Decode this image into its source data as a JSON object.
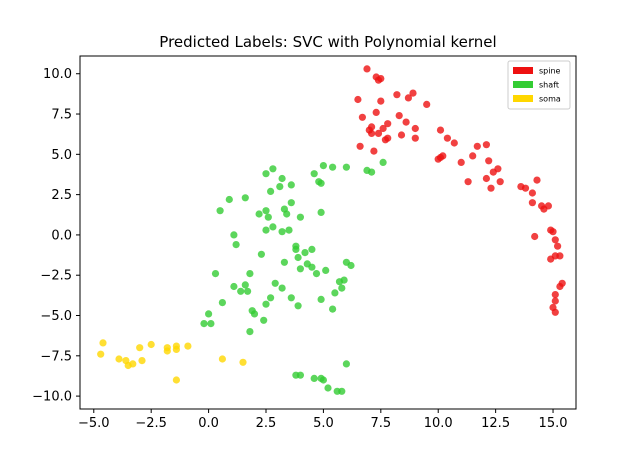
{
  "chart_data": {
    "type": "scatter",
    "title": "Predicted Labels: SVC with Polynomial kernel",
    "xlabel": "",
    "ylabel": "",
    "xlim": [
      -5.6,
      16.0
    ],
    "ylim": [
      -10.8,
      11.1
    ],
    "xticks": [
      -5.0,
      -2.5,
      0.0,
      2.5,
      5.0,
      7.5,
      10.0,
      12.5,
      15.0
    ],
    "xtick_labels": [
      "−5.0",
      "−2.5",
      "0.0",
      "2.5",
      "5.0",
      "7.5",
      "10.0",
      "12.5",
      "15.0"
    ],
    "yticks": [
      10.0,
      7.5,
      5.0,
      2.5,
      0.0,
      -2.5,
      -5.0,
      -7.5,
      -10.0
    ],
    "ytick_labels": [
      "10.0",
      "7.5",
      "5.0",
      "2.5",
      "0.0",
      "−2.5",
      "−5.0",
      "−7.5",
      "−10.0"
    ],
    "grid": false,
    "legend_position": "top-right",
    "series": [
      {
        "name": "spine",
        "color": "#ee1111",
        "points": [
          [
            6.9,
            10.3
          ],
          [
            7.3,
            9.8
          ],
          [
            7.4,
            9.6
          ],
          [
            7.5,
            9.7
          ],
          [
            6.5,
            8.4
          ],
          [
            7.5,
            8.3
          ],
          [
            8.2,
            8.7
          ],
          [
            8.7,
            8.5
          ],
          [
            8.9,
            8.8
          ],
          [
            9.5,
            8.1
          ],
          [
            6.7,
            7.3
          ],
          [
            7.3,
            7.6
          ],
          [
            8.3,
            7.4
          ],
          [
            7.0,
            6.5
          ],
          [
            7.1,
            6.7
          ],
          [
            7.6,
            6.6
          ],
          [
            7.8,
            6.9
          ],
          [
            8.6,
            7.0
          ],
          [
            7.1,
            6.3
          ],
          [
            7.4,
            6.3
          ],
          [
            8.4,
            6.2
          ],
          [
            9.0,
            6.6
          ],
          [
            9.0,
            6.0
          ],
          [
            7.7,
            5.9
          ],
          [
            7.8,
            6.0
          ],
          [
            6.6,
            5.5
          ],
          [
            7.2,
            5.2
          ],
          [
            10.1,
            6.5
          ],
          [
            10.4,
            6.0
          ],
          [
            10.7,
            5.7
          ],
          [
            11.7,
            5.5
          ],
          [
            12.1,
            5.6
          ],
          [
            10.1,
            4.8
          ],
          [
            10.2,
            4.9
          ],
          [
            10.0,
            4.7
          ],
          [
            11.0,
            4.5
          ],
          [
            11.5,
            4.9
          ],
          [
            12.2,
            4.6
          ],
          [
            12.4,
            3.9
          ],
          [
            12.6,
            4.1
          ],
          [
            11.3,
            3.3
          ],
          [
            12.1,
            3.5
          ],
          [
            12.7,
            3.3
          ],
          [
            12.3,
            2.9
          ],
          [
            13.6,
            3.0
          ],
          [
            13.8,
            2.9
          ],
          [
            14.1,
            2.6
          ],
          [
            14.3,
            3.4
          ],
          [
            14.1,
            2.0
          ],
          [
            14.5,
            1.8
          ],
          [
            14.6,
            1.6
          ],
          [
            14.8,
            1.8
          ],
          [
            14.9,
            0.3
          ],
          [
            15.0,
            0.2
          ],
          [
            14.2,
            -0.1
          ],
          [
            15.1,
            -0.3
          ],
          [
            15.2,
            -0.7
          ],
          [
            15.1,
            -1.3
          ],
          [
            15.3,
            -1.3
          ],
          [
            14.9,
            -1.5
          ],
          [
            15.4,
            -3.0
          ],
          [
            15.3,
            -3.2
          ],
          [
            15.1,
            -3.7
          ],
          [
            15.1,
            -4.1
          ],
          [
            15.0,
            -4.5
          ],
          [
            15.1,
            -4.8
          ]
        ]
      },
      {
        "name": "shaft",
        "color": "#33cc33",
        "points": [
          [
            2.8,
            4.1
          ],
          [
            2.5,
            3.8
          ],
          [
            3.2,
            3.5
          ],
          [
            4.6,
            3.8
          ],
          [
            5.0,
            4.3
          ],
          [
            5.4,
            4.2
          ],
          [
            6.0,
            4.2
          ],
          [
            7.6,
            4.5
          ],
          [
            6.9,
            4.0
          ],
          [
            7.1,
            3.9
          ],
          [
            4.8,
            3.3
          ],
          [
            4.9,
            3.2
          ],
          [
            3.1,
            3.0
          ],
          [
            3.6,
            3.1
          ],
          [
            0.9,
            2.2
          ],
          [
            1.6,
            2.3
          ],
          [
            2.7,
            2.7
          ],
          [
            3.6,
            2.0
          ],
          [
            0.5,
            1.5
          ],
          [
            2.2,
            1.3
          ],
          [
            2.5,
            1.5
          ],
          [
            2.6,
            1.1
          ],
          [
            3.3,
            1.6
          ],
          [
            3.4,
            1.3
          ],
          [
            4.0,
            1.1
          ],
          [
            4.9,
            1.4
          ],
          [
            2.8,
            0.5
          ],
          [
            2.5,
            0.3
          ],
          [
            3.2,
            0.2
          ],
          [
            3.5,
            0.3
          ],
          [
            1.1,
            0.0
          ],
          [
            1.2,
            -0.6
          ],
          [
            3.8,
            -0.7
          ],
          [
            3.8,
            -0.9
          ],
          [
            4.2,
            -1.1
          ],
          [
            4.5,
            -0.9
          ],
          [
            2.3,
            -1.2
          ],
          [
            3.3,
            -1.7
          ],
          [
            3.9,
            -1.4
          ],
          [
            4.0,
            -2.1
          ],
          [
            4.3,
            -1.8
          ],
          [
            4.5,
            -2.0
          ],
          [
            5.1,
            -2.2
          ],
          [
            6.0,
            -1.7
          ],
          [
            6.2,
            -1.9
          ],
          [
            0.3,
            -2.4
          ],
          [
            1.8,
            -2.4
          ],
          [
            4.7,
            -2.4
          ],
          [
            5.7,
            -2.9
          ],
          [
            5.9,
            -2.8
          ],
          [
            5.8,
            -3.3
          ],
          [
            5.5,
            -3.6
          ],
          [
            2.9,
            -3.0
          ],
          [
            3.2,
            -3.3
          ],
          [
            1.1,
            -3.2
          ],
          [
            1.6,
            -3.1
          ],
          [
            1.7,
            -3.5
          ],
          [
            1.4,
            -3.5
          ],
          [
            2.7,
            -3.9
          ],
          [
            2.5,
            -4.3
          ],
          [
            3.6,
            -3.9
          ],
          [
            4.9,
            -4.0
          ],
          [
            5.4,
            -4.6
          ],
          [
            3.9,
            -4.4
          ],
          [
            0.6,
            -4.2
          ],
          [
            0.0,
            -4.9
          ],
          [
            1.9,
            -4.7
          ],
          [
            2.0,
            -4.9
          ],
          [
            0.1,
            -5.5
          ],
          [
            -0.2,
            -5.5
          ],
          [
            2.4,
            -5.3
          ],
          [
            1.8,
            -6.0
          ],
          [
            6.0,
            -8.0
          ],
          [
            3.8,
            -8.7
          ],
          [
            4.0,
            -8.7
          ],
          [
            4.6,
            -8.9
          ],
          [
            4.9,
            -8.9
          ],
          [
            5.0,
            -9.0
          ],
          [
            5.2,
            -9.5
          ],
          [
            5.6,
            -9.7
          ],
          [
            5.8,
            -9.7
          ]
        ]
      },
      {
        "name": "soma",
        "color": "#ffd700",
        "points": [
          [
            -4.6,
            -6.7
          ],
          [
            -4.7,
            -7.4
          ],
          [
            -3.9,
            -7.7
          ],
          [
            -3.6,
            -7.8
          ],
          [
            -3.5,
            -8.1
          ],
          [
            -3.3,
            -8.0
          ],
          [
            -3.0,
            -7.0
          ],
          [
            -2.9,
            -7.8
          ],
          [
            -2.5,
            -6.8
          ],
          [
            -1.8,
            -7.0
          ],
          [
            -1.8,
            -7.2
          ],
          [
            -1.4,
            -6.9
          ],
          [
            -1.4,
            -7.1
          ],
          [
            -0.9,
            -6.9
          ],
          [
            -1.4,
            -9.0
          ],
          [
            0.6,
            -7.7
          ],
          [
            1.5,
            -7.9
          ]
        ]
      }
    ]
  }
}
